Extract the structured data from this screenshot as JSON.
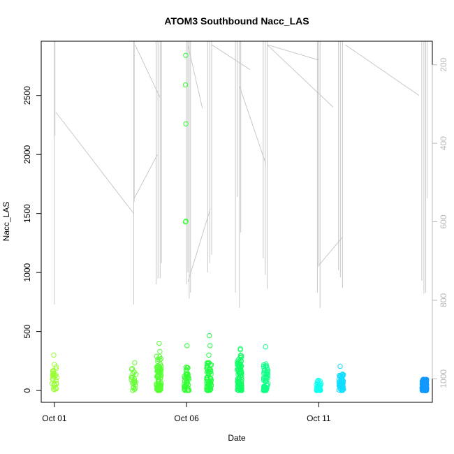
{
  "chart_data": {
    "type": "scatter",
    "title": "ATOM3 Southbound Nacc_LAS",
    "xlabel": "Date",
    "ylabel": "Nacc_LAS",
    "x_tick_labels": [
      "Oct 01",
      "Oct 06",
      "Oct 11"
    ],
    "x_tick_days": [
      1,
      6,
      11
    ],
    "xlim_days": [
      0.5,
      15.3
    ],
    "ylim": [
      -100,
      2960
    ],
    "y_ticks": [
      0,
      500,
      1000,
      1500,
      2000,
      2500
    ],
    "y2_label_note": "secondary axis (reversed), light grey",
    "y2_ticks": [
      200,
      400,
      600,
      800,
      1000
    ],
    "y2_lim_reversed": [
      140,
      1060
    ],
    "scatter_clusters": [
      {
        "day": 1.0,
        "color": "#99ff33",
        "n": 30,
        "base_max": 230,
        "outliers": [
          300
        ]
      },
      {
        "day": 4.0,
        "color": "#66ff33",
        "n": 24,
        "base_max": 200,
        "outliers": [
          235
        ]
      },
      {
        "day": 4.95,
        "color": "#55ff33",
        "n": 80,
        "base_max": 300,
        "outliers": [
          400,
          330
        ]
      },
      {
        "day": 6.0,
        "color": "#33ff33",
        "n": 45,
        "base_max": 200,
        "outliers": [
          380,
          1430,
          1435,
          2260,
          2590,
          2840
        ]
      },
      {
        "day": 6.85,
        "color": "#22ff44",
        "n": 70,
        "base_max": 250,
        "outliers": [
          465,
          380,
          300
        ]
      },
      {
        "day": 8.0,
        "color": "#11ff66",
        "n": 90,
        "base_max": 300,
        "outliers": [
          345,
          355
        ]
      },
      {
        "day": 9.0,
        "color": "#11ff88",
        "n": 60,
        "base_max": 250,
        "outliers": [
          370
        ]
      },
      {
        "day": 11.0,
        "color": "#11ffee",
        "n": 40,
        "base_max": 90,
        "outliers": []
      },
      {
        "day": 11.85,
        "color": "#11ddff",
        "n": 60,
        "base_max": 140,
        "outliers": [
          205
        ]
      },
      {
        "day": 15.0,
        "color": "#1199ff",
        "n": 120,
        "base_max": 100,
        "outliers": []
      }
    ],
    "series_color_note": "point colours shift green to blue with date",
    "background_line_color": "#c8c8c8"
  }
}
